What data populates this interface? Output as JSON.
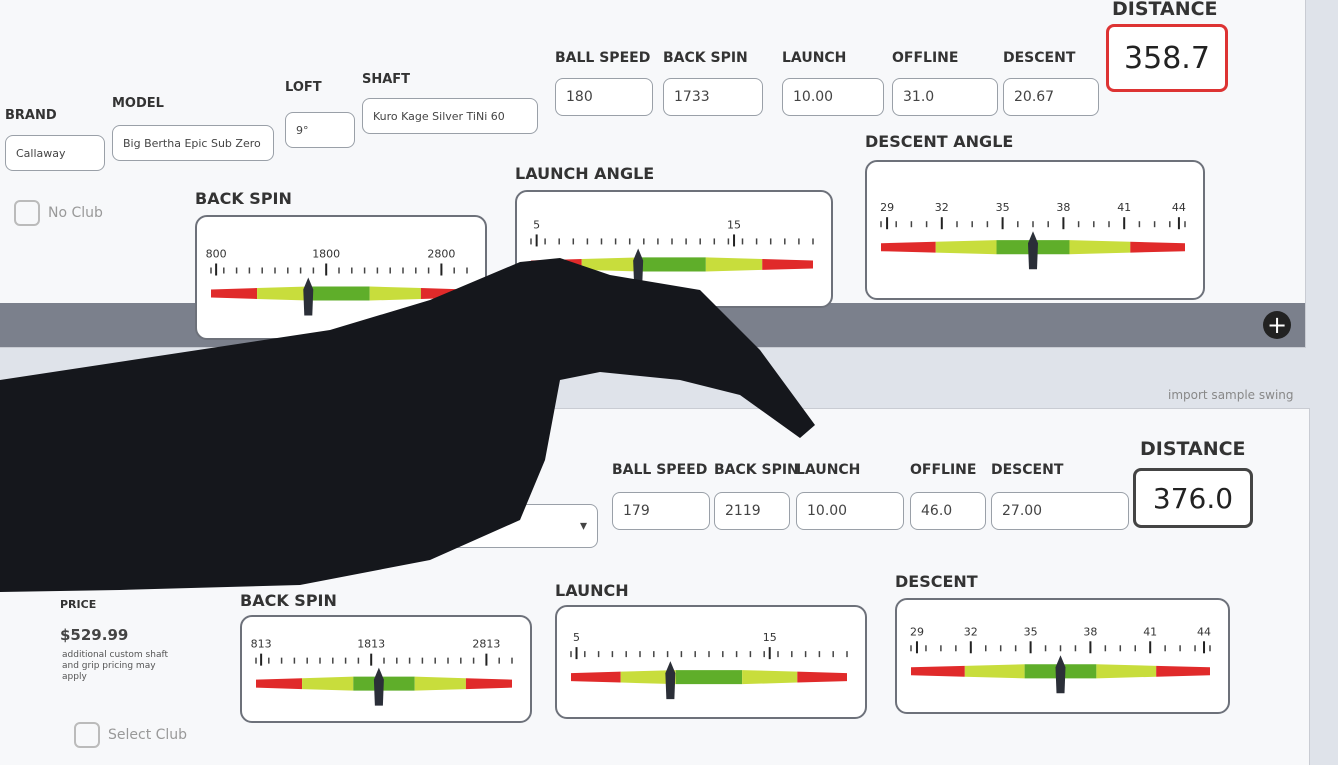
{
  "panel1": {
    "fields": [
      {
        "label": "BRAND",
        "value": "Callaway"
      },
      {
        "label": "MODEL",
        "value": "Big Bertha Epic Sub Zero"
      },
      {
        "label": "LOFT",
        "value": "9°"
      },
      {
        "label": "SHAFT",
        "value": "Kuro Kage Silver TiNi 60"
      }
    ],
    "checkbox": "No Club",
    "stats": [
      {
        "label": "BALL SPEED",
        "value": "180"
      },
      {
        "label": "BACK SPIN",
        "value": "1733"
      },
      {
        "label": "LAUNCH",
        "value": "10.00"
      },
      {
        "label": "OFFLINE",
        "value": "31.0"
      },
      {
        "label": "DESCENT",
        "value": "20.67"
      }
    ],
    "distance": {
      "label": "DISTANCE",
      "value": "358.7"
    },
    "gauges": [
      {
        "title": "BACK SPIN",
        "ticks": [
          "800",
          "1800",
          "2800"
        ]
      },
      {
        "title": "LAUNCH ANGLE",
        "ticks": [
          "5",
          "15"
        ]
      },
      {
        "title": "DESCENT ANGLE",
        "ticks": [
          "29",
          "32",
          "35",
          "38",
          "41",
          "44"
        ]
      }
    ]
  },
  "import_link": "import sample swing",
  "panel2": {
    "price_label": "PRICE",
    "price": "$529.99",
    "price_note": "additional custom shaft and grip pricing may apply",
    "checkbox": "Select Club",
    "stats": [
      {
        "label": "BALL SPEED",
        "value": "179"
      },
      {
        "label": "BACK SPIN",
        "value": "2119"
      },
      {
        "label": "LAUNCH",
        "value": "10.00"
      },
      {
        "label": "OFFLINE",
        "value": "46.0"
      },
      {
        "label": "DESCENT",
        "value": "27.00"
      }
    ],
    "distance": {
      "label": "DISTANCE",
      "value": "376.0"
    },
    "gauges": [
      {
        "title": "BACK SPIN",
        "ticks": [
          "813",
          "1813",
          "2813"
        ]
      },
      {
        "title": "LAUNCH",
        "ticks": [
          "5",
          "15"
        ]
      },
      {
        "title": "DESCENT",
        "ticks": [
          "29",
          "32",
          "35",
          "38",
          "41",
          "44"
        ]
      }
    ]
  }
}
